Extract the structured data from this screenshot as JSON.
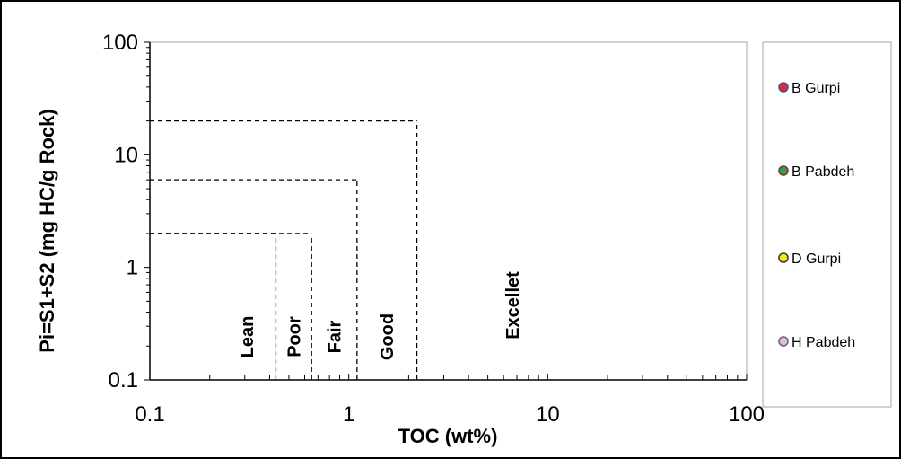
{
  "chart_data": {
    "type": "scatter",
    "title": "",
    "xlabel": "TOC (wt%)",
    "ylabel": "Pi=S1+S2 (mg HC/g Rock)",
    "x_scale": "log",
    "y_scale": "log",
    "xlim": [
      0.1,
      100
    ],
    "ylim": [
      0.1,
      100
    ],
    "x_ticks": [
      "0.1",
      "1",
      "10",
      "100"
    ],
    "y_ticks": [
      "0.1",
      "1",
      "10",
      "100"
    ],
    "grid": false,
    "legend_position": "right",
    "boundaries": [
      {
        "toc": 0.43,
        "pi": 2
      },
      {
        "toc": 0.65,
        "pi": 2
      },
      {
        "toc": 1.1,
        "pi": 6
      },
      {
        "toc": 2.2,
        "pi": 20
      }
    ],
    "zones": [
      "Lean",
      "Poor",
      "Fair",
      "Good",
      "Excellet"
    ],
    "series": [
      {
        "name": "B Gurpi",
        "color": "#e8262b",
        "edge_color": "#3b5ba5",
        "x": [],
        "y": []
      },
      {
        "name": "B Pabdeh",
        "color": "#2e9e4f",
        "edge_color": "#7a3b2e",
        "x": [],
        "y": []
      },
      {
        "name": "D Gurpi",
        "color": "#f2ea1c",
        "edge_color": "#3a3a3a",
        "x": [],
        "y": []
      },
      {
        "name": "H Pabdeh",
        "color": "#f2b8c2",
        "edge_color": "#5a6a8a",
        "x": [],
        "y": []
      }
    ]
  }
}
